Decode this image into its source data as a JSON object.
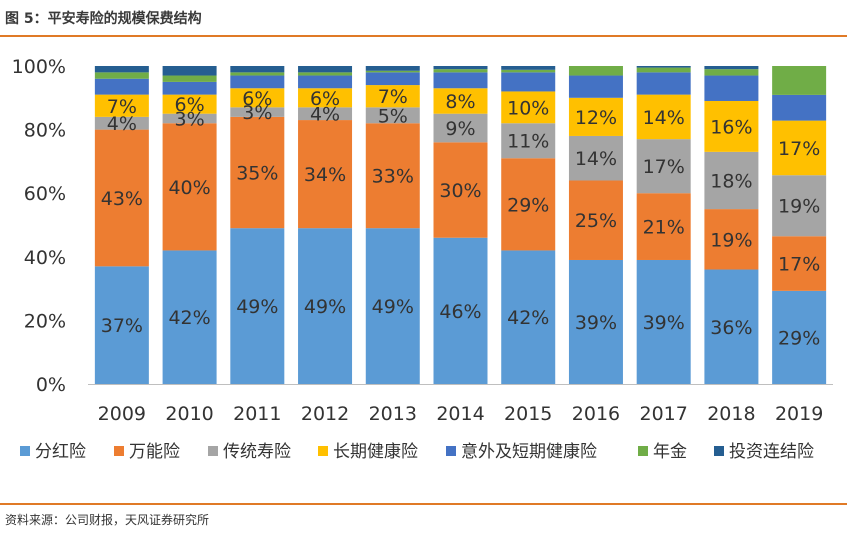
{
  "figure": {
    "title": "图 5：平安寿险的规模保费结构",
    "source": "资料来源：公司财报，天风证券研究所"
  },
  "colors": {
    "rule": "#e07a26",
    "series": [
      "#5b9bd5",
      "#ed7d31",
      "#a5a5a5",
      "#ffc000",
      "#4472c4",
      "#70ad47",
      "#255e91"
    ]
  },
  "chart_data": {
    "type": "bar",
    "stacked": true,
    "percent": true,
    "categories": [
      "2009",
      "2010",
      "2011",
      "2012",
      "2013",
      "2014",
      "2015",
      "2016",
      "2017",
      "2018",
      "2019"
    ],
    "ylim": [
      0,
      100
    ],
    "yticks": [
      0,
      20,
      40,
      60,
      80,
      100
    ],
    "ytick_labels": [
      "0%",
      "20%",
      "40%",
      "60%",
      "80%",
      "100%"
    ],
    "legend_position": "bottom",
    "series": [
      {
        "name": "分红险",
        "values": [
          37,
          42,
          49,
          49,
          49,
          46,
          42,
          39,
          39,
          36,
          29
        ],
        "labels": [
          "37%",
          "42%",
          "49%",
          "49%",
          "49%",
          "46%",
          "42%",
          "39%",
          "39%",
          "36%",
          "29%"
        ]
      },
      {
        "name": "万能险",
        "values": [
          43,
          40,
          35,
          34,
          33,
          30,
          29,
          25,
          21,
          19,
          17
        ],
        "labels": [
          "43%",
          "40%",
          "35%",
          "34%",
          "33%",
          "30%",
          "29%",
          "25%",
          "21%",
          "19%",
          "17%"
        ]
      },
      {
        "name": "传统寿险",
        "values": [
          4,
          3,
          3,
          4,
          5,
          9,
          11,
          14,
          17,
          18,
          19
        ],
        "labels": [
          "4%",
          "3%",
          "3%",
          "4%",
          "5%",
          "9%",
          "11%",
          "14%",
          "17%",
          "18%",
          "19%"
        ]
      },
      {
        "name": "长期健康险",
        "values": [
          7,
          6,
          6,
          6,
          7,
          8,
          10,
          12,
          14,
          16,
          17
        ],
        "labels": [
          "7%",
          "6%",
          "6%",
          "6%",
          "7%",
          "8%",
          "10%",
          "12%",
          "14%",
          "16%",
          "17%"
        ]
      },
      {
        "name": "意外及短期健康险",
        "values": [
          5,
          4,
          4,
          4,
          4,
          5,
          6,
          7,
          7,
          8,
          8
        ],
        "labels": []
      },
      {
        "name": "年金",
        "values": [
          2,
          2,
          1,
          1,
          0.5,
          1,
          0.8,
          3,
          1.5,
          2,
          9
        ],
        "labels": []
      },
      {
        "name": "投资连结险",
        "values": [
          2,
          3,
          2,
          2,
          1.5,
          1,
          1.2,
          0,
          0.5,
          1,
          0
        ],
        "labels": []
      }
    ]
  }
}
